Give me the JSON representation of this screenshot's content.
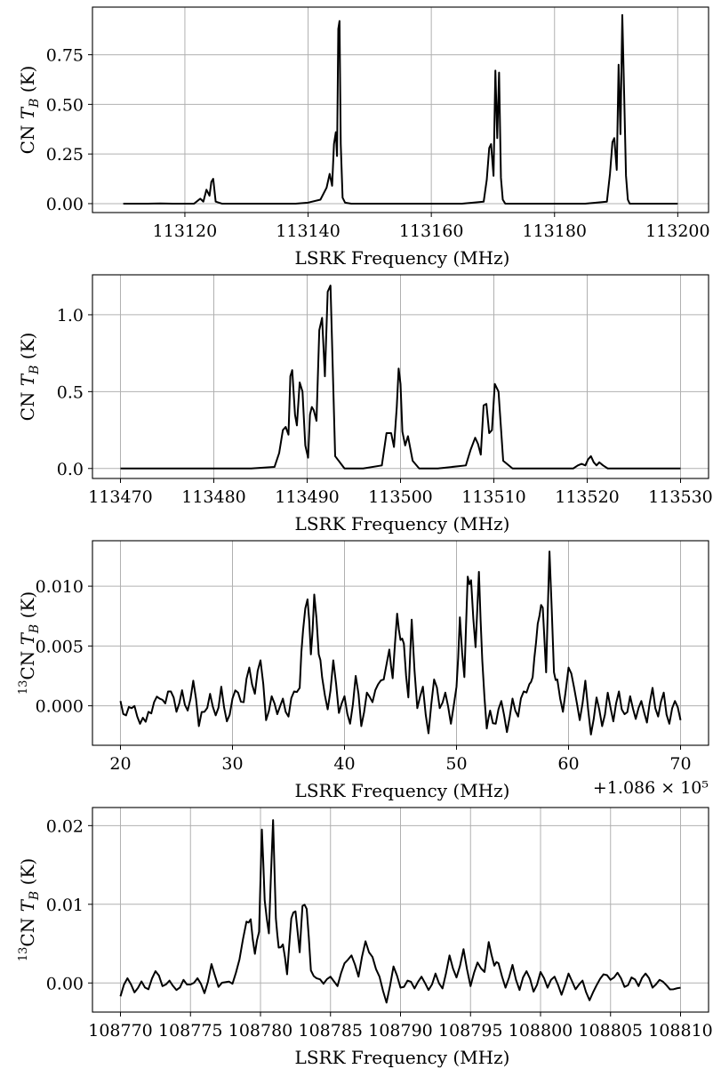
{
  "chart_data": [
    {
      "type": "line",
      "xlabel": "LSRK Frequency (MHz)",
      "ylabel_parts": [
        "CN ",
        "T",
        "B",
        " (K)"
      ],
      "xlim": [
        113105,
        113205
      ],
      "ylim": [
        -0.045,
        0.99
      ],
      "xticks": [
        113120,
        113140,
        113160,
        113180,
        113200
      ],
      "xtick_labels": [
        "113120",
        "113140",
        "113160",
        "113180",
        "113200"
      ],
      "yticks": [
        0.0,
        0.25,
        0.5,
        0.75
      ],
      "ytick_labels": [
        "0.00",
        "0.25",
        "0.50",
        "0.75"
      ],
      "x_offset_label": "",
      "grid": true,
      "line_color": "#000000",
      "x": [
        113110,
        113112,
        113114,
        113116,
        113118,
        113120,
        113121.5,
        113122.5,
        113123,
        113123.5,
        113124,
        113124.3,
        113124.6,
        113125,
        113126,
        113130,
        113135,
        113138,
        113140,
        113142,
        113143,
        113143.5,
        113143.9,
        113144.2,
        113144.5,
        113144.7,
        113144.9,
        113145.1,
        113145.3,
        113145.6,
        113146,
        113147,
        113150,
        113155,
        113160,
        113165,
        113168.5,
        113169,
        113169.4,
        113169.7,
        113170.1,
        113170.4,
        113170.7,
        113171,
        113171.3,
        113171.6,
        113172,
        113173,
        113176,
        113180,
        113185,
        113188.5,
        113189,
        113189.4,
        113189.7,
        113190.1,
        113190.4,
        113190.7,
        113191,
        113191.3,
        113191.6,
        113191.9,
        113192.2,
        113192.5,
        113193,
        113194,
        113197,
        113200
      ],
      "y": [
        0.0,
        0.0,
        0.0,
        0.001,
        0.0,
        0.0,
        0.0,
        0.025,
        0.01,
        0.07,
        0.04,
        0.11,
        0.125,
        0.01,
        0.0,
        0.0,
        0.0,
        0.0,
        0.005,
        0.02,
        0.08,
        0.15,
        0.09,
        0.3,
        0.36,
        0.24,
        0.88,
        0.92,
        0.3,
        0.03,
        0.005,
        0.0,
        0.0,
        0.0,
        0.0,
        0.0,
        0.01,
        0.12,
        0.28,
        0.3,
        0.14,
        0.67,
        0.33,
        0.66,
        0.13,
        0.02,
        0.0,
        0.0,
        0.0,
        0.0,
        0.0,
        0.01,
        0.15,
        0.31,
        0.33,
        0.17,
        0.7,
        0.35,
        0.95,
        0.55,
        0.14,
        0.02,
        0.0,
        0.0,
        0.0,
        0.0,
        0.0,
        0.0
      ]
    },
    {
      "type": "line",
      "xlabel": "LSRK Frequency (MHz)",
      "ylabel_parts": [
        "CN ",
        "T",
        "B",
        " (K)"
      ],
      "xlim": [
        113467,
        113533
      ],
      "ylim": [
        -0.065,
        1.26
      ],
      "xticks": [
        113470,
        113480,
        113490,
        113500,
        113510,
        113520,
        113530
      ],
      "xtick_labels": [
        "113470",
        "113480",
        "113490",
        "113500",
        "113510",
        "113520",
        "113530"
      ],
      "yticks": [
        0.0,
        0.5,
        1.0
      ],
      "ytick_labels": [
        "0.0",
        "0.5",
        "1.0"
      ],
      "x_offset_label": "",
      "grid": true,
      "line_color": "#000000",
      "x": [
        113470,
        113475,
        113480,
        113484,
        113486.5,
        113487,
        113487.4,
        113487.7,
        113488,
        113488.2,
        113488.4,
        113488.7,
        113488.9,
        113489.2,
        113489.5,
        113489.8,
        113490.1,
        113490.3,
        113490.5,
        113490.7,
        113491,
        113491.3,
        113491.6,
        113491.9,
        113492.2,
        113492.5,
        113493,
        113494,
        113496,
        113498,
        113498.5,
        113499,
        113499.3,
        113499.6,
        113499.8,
        113500,
        113500.2,
        113500.5,
        113500.8,
        113501.3,
        113502,
        113504,
        113507,
        113507.5,
        113508,
        113508.3,
        113508.6,
        113508.9,
        113509.2,
        113509.5,
        113509.8,
        113510.1,
        113510.5,
        113511,
        113512,
        113515,
        113518.5,
        113519,
        113519.4,
        113519.8,
        113520.1,
        113520.4,
        113520.7,
        113521,
        113521.3,
        113521.7,
        113522.2,
        113523,
        113525,
        113530
      ],
      "y": [
        0.0,
        0.0,
        0.0,
        0.0,
        0.01,
        0.1,
        0.25,
        0.27,
        0.22,
        0.6,
        0.64,
        0.35,
        0.28,
        0.56,
        0.5,
        0.15,
        0.07,
        0.35,
        0.4,
        0.38,
        0.31,
        0.9,
        0.98,
        0.6,
        1.15,
        1.19,
        0.08,
        0.0,
        0.0,
        0.02,
        0.23,
        0.23,
        0.14,
        0.4,
        0.65,
        0.55,
        0.24,
        0.15,
        0.21,
        0.05,
        0.0,
        0.0,
        0.02,
        0.12,
        0.2,
        0.16,
        0.09,
        0.41,
        0.42,
        0.23,
        0.25,
        0.55,
        0.5,
        0.05,
        0.0,
        0.0,
        0.0,
        0.02,
        0.03,
        0.02,
        0.06,
        0.08,
        0.04,
        0.02,
        0.04,
        0.02,
        0.0,
        0.0,
        0.0,
        0.0
      ]
    },
    {
      "type": "line",
      "xlabel": "LSRK Frequency (MHz)",
      "ylabel_parts": [
        "13",
        "CN ",
        "T",
        "B",
        " (K)"
      ],
      "xlim": [
        17.5,
        72.5
      ],
      "ylim": [
        -0.0033,
        0.0138
      ],
      "xticks": [
        20,
        30,
        40,
        50,
        60,
        70
      ],
      "xtick_labels": [
        "20",
        "30",
        "40",
        "50",
        "60",
        "70"
      ],
      "yticks": [
        0.0,
        0.005,
        0.01
      ],
      "ytick_labels": [
        "0.000",
        "0.005",
        "0.010"
      ],
      "x_offset_label": "+1.086 × 10⁵",
      "grid": true,
      "line_color": "#000000",
      "x": [
        20,
        20.5,
        21,
        21.5,
        22,
        22.5,
        23,
        23.5,
        24,
        24.5,
        25,
        25.5,
        26,
        26.5,
        27,
        27.5,
        28,
        28.5,
        29,
        29.5,
        30,
        30.5,
        31,
        31.5,
        32,
        32.5,
        33,
        33.5,
        34,
        34.5,
        35,
        35.5,
        36,
        36.3,
        36.7,
        37,
        37.3,
        37.7,
        38,
        38.5,
        39,
        39.5,
        40,
        40.5,
        41,
        41.5,
        42,
        42.5,
        43,
        43.5,
        44,
        44.3,
        44.7,
        45,
        45.3,
        45.7,
        46,
        46.5,
        47,
        47.5,
        48,
        48.5,
        49,
        49.5,
        50,
        50.3,
        50.7,
        51,
        51.3,
        51.7,
        52,
        52.3,
        52.7,
        53,
        53.5,
        54,
        54.5,
        55,
        55.5,
        56,
        56.5,
        56.8,
        57.1,
        57.4,
        57.7,
        58,
        58.3,
        58.7,
        59,
        59.5,
        60,
        60.5,
        61,
        61.5,
        62,
        62.5,
        63,
        63.5,
        64,
        64.5,
        65,
        65.5,
        66,
        66.5,
        67,
        67.5,
        68,
        68.5,
        69,
        69.5,
        70
      ],
      "y": [
        0.0004,
        -0.0008,
        -0.0002,
        -0.0009,
        -0.001,
        -0.0005,
        0.0003,
        0.0006,
        0.0002,
        0.0012,
        -0.0005,
        0.0013,
        -0.0004,
        0.0021,
        -0.0017,
        -0.0005,
        0.001,
        -0.0008,
        0.0016,
        -0.0013,
        0.0006,
        0.0011,
        0.0003,
        0.0032,
        0.001,
        0.0038,
        -0.0012,
        0.0008,
        -0.0007,
        0.0006,
        -0.0009,
        0.0012,
        0.0015,
        0.0063,
        0.0089,
        0.0043,
        0.0093,
        0.0043,
        0.0024,
        -0.0003,
        0.0038,
        -0.0006,
        0.0008,
        -0.0015,
        0.0025,
        -0.0017,
        0.0011,
        0.0003,
        0.0018,
        0.0022,
        0.0047,
        0.0023,
        0.0077,
        0.0055,
        0.0052,
        0.0007,
        0.0072,
        -0.0002,
        0.0016,
        -0.0023,
        0.0022,
        -0.0002,
        0.0011,
        -0.0015,
        0.0016,
        0.0074,
        0.0024,
        0.0108,
        0.0105,
        0.0049,
        0.0112,
        0.0038,
        -0.0019,
        -0.0004,
        -0.0015,
        0.0004,
        -0.0022,
        0.0006,
        -0.0009,
        0.0012,
        0.0018,
        0.0024,
        0.0053,
        0.0075,
        0.0082,
        0.0028,
        0.0129,
        0.0028,
        0.0022,
        -0.0005,
        0.0032,
        0.0015,
        -0.0012,
        0.0021,
        -0.0024,
        0.0007,
        -0.0017,
        0.0011,
        -0.0013,
        0.0012,
        -0.0007,
        0.0008,
        -0.0011,
        0.0004,
        -0.0014,
        0.0015,
        -0.0009,
        0.0011,
        -0.0015,
        0.0004,
        -0.0012
      ],
      "noise_amp": 0.0006
    },
    {
      "type": "line",
      "xlabel": "LSRK Frequency (MHz)",
      "ylabel_parts": [
        "13",
        "CN ",
        "T",
        "B",
        " (K)"
      ],
      "xlim": [
        108768,
        108812
      ],
      "ylim": [
        -0.0037,
        0.0223
      ],
      "xticks": [
        108770,
        108775,
        108780,
        108785,
        108790,
        108795,
        108800,
        108805,
        108810
      ],
      "xtick_labels": [
        "108770",
        "108775",
        "108780",
        "108785",
        "108790",
        "108795",
        "108800",
        "108805",
        "108810"
      ],
      "yticks": [
        0.0,
        0.01,
        0.02
      ],
      "ytick_labels": [
        "0.00",
        "0.01",
        "0.02"
      ],
      "x_offset_label": "",
      "grid": true,
      "line_color": "#000000",
      "x": [
        108770,
        108770.5,
        108771,
        108771.5,
        108772,
        108772.5,
        108773,
        108773.5,
        108774,
        108774.5,
        108775,
        108775.5,
        108776,
        108776.5,
        108777,
        108777.5,
        108778,
        108778.5,
        108779,
        108779.3,
        108779.6,
        108779.9,
        108780.1,
        108780.3,
        108780.6,
        108780.9,
        108781.1,
        108781.3,
        108781.6,
        108781.9,
        108782.2,
        108782.5,
        108782.8,
        108783,
        108783.3,
        108783.6,
        108784,
        108784.5,
        108785,
        108785.5,
        108786,
        108786.5,
        108787,
        108787.5,
        108788,
        108788.5,
        108789,
        108789.5,
        108790,
        108790.5,
        108791,
        108791.5,
        108792,
        108792.5,
        108793,
        108793.5,
        108794,
        108794.5,
        108795,
        108795.5,
        108796,
        108796.3,
        108796.7,
        108797,
        108797.5,
        108798,
        108798.5,
        108799,
        108799.5,
        108800,
        108800.5,
        108801,
        108801.5,
        108802,
        108802.5,
        108803,
        108803.5,
        108804,
        108804.5,
        108805,
        108805.5,
        108806,
        108806.5,
        108807,
        108807.5,
        108808,
        108808.5,
        108809,
        108809.5,
        108810
      ],
      "y": [
        -0.0017,
        0.0006,
        -0.0012,
        0.0002,
        -0.0008,
        0.0015,
        -0.0004,
        0.0003,
        -0.0009,
        0.0004,
        -0.0002,
        0.0006,
        -0.0013,
        0.0024,
        -0.0005,
        0.0001,
        -0.0001,
        0.003,
        0.0078,
        0.0081,
        0.0037,
        0.0065,
        0.0195,
        0.0105,
        0.0063,
        0.0207,
        0.0082,
        0.0045,
        0.0049,
        0.0011,
        0.0082,
        0.0091,
        0.0039,
        0.0098,
        0.0094,
        0.0016,
        0.0006,
        -0.0001,
        0.0008,
        -0.0004,
        0.0025,
        0.0035,
        0.0008,
        0.0053,
        0.0033,
        0.0008,
        -0.0025,
        0.0021,
        -0.0006,
        0.0003,
        -0.0007,
        0.0008,
        -0.0009,
        0.0012,
        -0.0007,
        0.0035,
        0.0007,
        0.0043,
        -0.0004,
        0.0026,
        0.0014,
        0.0052,
        0.0022,
        0.0025,
        -0.0006,
        0.0023,
        -0.0009,
        0.0015,
        -0.0011,
        0.0014,
        -0.0006,
        0.0008,
        -0.0015,
        0.0012,
        -0.0008,
        0.0003,
        -0.0022,
        -0.0003,
        0.0011,
        0.0004,
        0.0013,
        -0.0005,
        0.0007,
        -0.0004,
        0.0012,
        -0.0006,
        0.0004,
        -0.0003,
        -0.0008,
        -0.0006
      ],
      "noise_amp": 0.0004
    }
  ]
}
